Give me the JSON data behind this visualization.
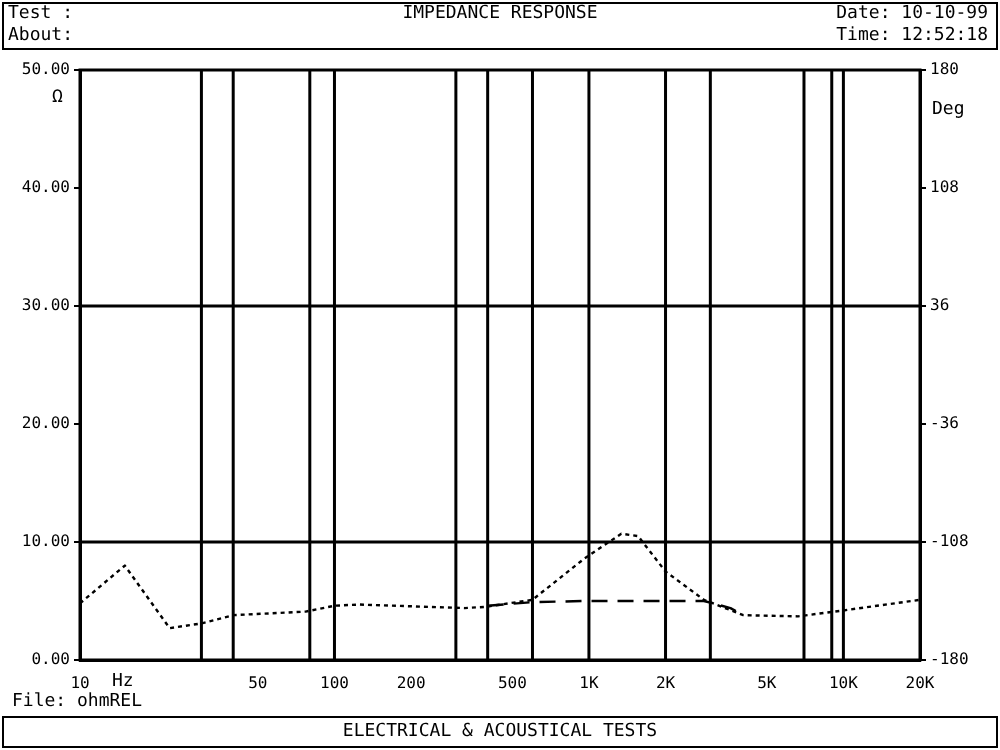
{
  "chart_data": {
    "type": "line",
    "title": "IMPEDANCE RESPONSE",
    "xlabel": "Hz",
    "ylabel": "Ω",
    "y2label": "Deg",
    "annotations": [
      "Test :",
      "About:",
      "Date: 10-10-99",
      "Time: 12:52:18",
      "File: ohmREL",
      "ELECTRICAL & ACOUSTICAL TESTS"
    ],
    "log": "x",
    "marker": "none",
    "xlim": [
      10,
      20000
    ],
    "xticks": [
      10,
      50,
      100,
      200,
      500,
      {
        "value": 1000,
        "label": "1K"
      },
      {
        "value": 2000,
        "label": "2K"
      },
      {
        "value": 5000,
        "label": "5K"
      },
      {
        "value": 10000,
        "label": "10K"
      },
      {
        "value": 20000,
        "label": "20K"
      }
    ],
    "ylim": [
      0,
      50
    ],
    "yticks": [
      {
        "value": 0,
        "label": "0.00"
      },
      {
        "value": 10,
        "label": "10.00"
      },
      {
        "value": 20,
        "label": "20.00"
      },
      {
        "value": 30,
        "label": "30.00"
      },
      {
        "value": 40,
        "label": "40.00"
      },
      {
        "value": 50,
        "label": "50.00"
      }
    ],
    "y2lim": [
      -180,
      180
    ],
    "y2ticks": [
      -180,
      -108,
      -36,
      36,
      108,
      180
    ],
    "series": [
      {
        "color": "#000000",
        "line_style": "dotted",
        "x": [
          10,
          15,
          22.5,
          30,
          40,
          77,
          100,
          125,
          325,
          390,
          600,
          960,
          1340,
          1560,
          2000,
          2830,
          4040,
          6630,
          10000,
          20000
        ],
        "values": [
          4.8,
          8.0,
          2.7,
          3.1,
          3.8,
          4.1,
          4.6,
          4.7,
          4.4,
          4.5,
          5.1,
          8.6,
          10.7,
          10.5,
          7.5,
          5.1,
          3.8,
          3.7,
          4.2,
          5.1
        ]
      },
      {
        "color": "#000000",
        "line_style": "dashed",
        "x": [
          400,
          600,
          960,
          2000,
          2830,
          3600,
          4040
        ],
        "values": [
          4.6,
          4.9,
          5.0,
          5.0,
          5.0,
          4.4,
          3.8
        ]
      }
    ],
    "ref_lines": [
      {
        "axis": "y",
        "value": 10
      },
      {
        "axis": "y",
        "value": 30
      },
      {
        "axis": "x",
        "value": 30
      },
      {
        "axis": "x",
        "value": 40
      },
      {
        "axis": "x",
        "value": 80
      },
      {
        "axis": "x",
        "value": 100
      },
      {
        "axis": "x",
        "value": 300
      },
      {
        "axis": "x",
        "value": 400
      },
      {
        "axis": "x",
        "value": 600
      },
      {
        "axis": "x",
        "value": 1000
      },
      {
        "axis": "x",
        "value": 2000
      },
      {
        "axis": "x",
        "value": 3000
      },
      {
        "axis": "x",
        "value": 7000
      },
      {
        "axis": "x",
        "value": 9000
      },
      {
        "axis": "x",
        "value": 10000
      }
    ]
  }
}
